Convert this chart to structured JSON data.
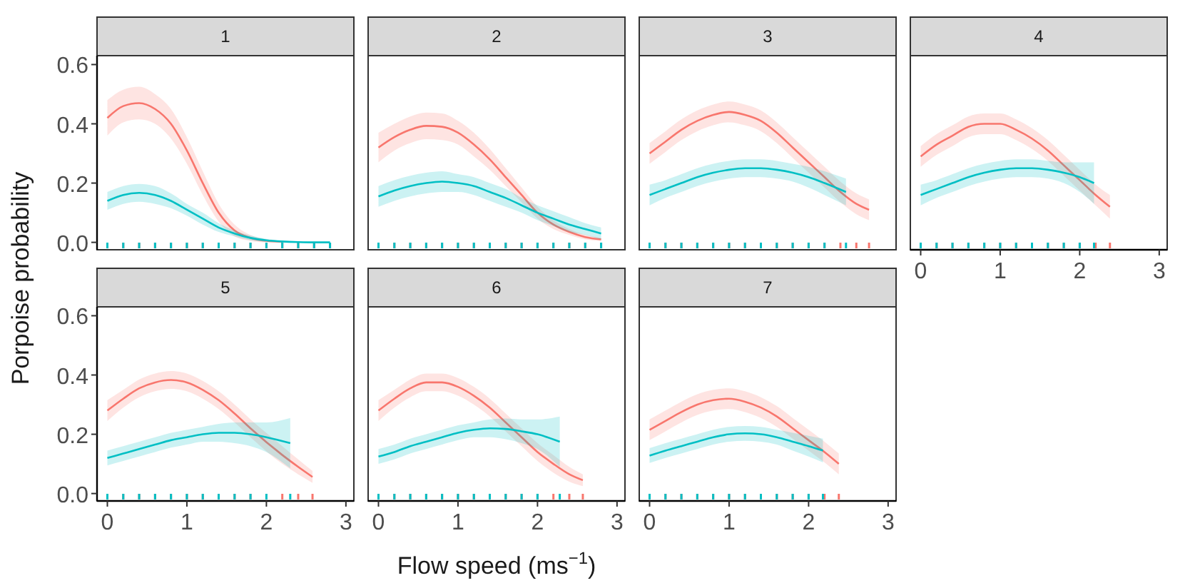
{
  "chart_data": [
    {
      "type": "line",
      "title": "1",
      "ylabel": "Porpoise probability",
      "xlim": [
        -0.13,
        3.1
      ],
      "ylim": [
        -0.025,
        0.63
      ],
      "yticks": [
        {
          "value": 0,
          "label": "0.0"
        },
        {
          "value": 0.2,
          "label": "0.2"
        },
        {
          "value": 0.4,
          "label": "0.4"
        },
        {
          "value": 0.6,
          "label": "0.6"
        }
      ],
      "tick_labels": "y",
      "series": [
        {
          "color": "#f8766d",
          "x": [
            0,
            0.2,
            0.4,
            0.6,
            0.8,
            1,
            1.2,
            1.4,
            1.6,
            1.8,
            2,
            2.2,
            2.4,
            2.6,
            2.8
          ],
          "values": [
            0.42,
            0.46,
            0.47,
            0.45,
            0.4,
            0.31,
            0.2,
            0.1,
            0.04,
            0.015,
            0.005,
            0.002,
            null,
            null,
            null
          ],
          "lower": [
            0.36,
            0.405,
            0.415,
            0.4,
            0.35,
            0.265,
            0.16,
            0.07,
            0.02,
            0.005,
            0,
            0,
            0,
            0,
            0
          ],
          "upper": [
            0.48,
            0.515,
            0.525,
            0.5,
            0.45,
            0.355,
            0.24,
            0.13,
            0.06,
            0.025,
            0.01,
            0.005,
            0.003,
            0.001,
            0.001
          ]
        },
        {
          "color": "#00bfc4",
          "x": [
            0,
            0.2,
            0.4,
            0.6,
            0.8,
            1,
            1.2,
            1.4,
            1.6,
            1.8,
            2,
            2.2,
            2.4,
            2.6,
            2.8
          ],
          "values": [
            0.14,
            0.16,
            0.167,
            0.16,
            0.14,
            0.11,
            0.08,
            0.05,
            0.03,
            0.015,
            0.007,
            0.003,
            0.001,
            0,
            0
          ],
          "lower": [
            0.11,
            0.13,
            0.137,
            0.13,
            0.115,
            0.09,
            0.06,
            0.035,
            0.02,
            0.007,
            0.002,
            0,
            0,
            0,
            0
          ],
          "upper": [
            0.17,
            0.19,
            0.197,
            0.19,
            0.165,
            0.13,
            0.1,
            0.065,
            0.04,
            0.023,
            0.012,
            0.006,
            0.003,
            0.001,
            0.001
          ]
        }
      ]
    },
    {
      "type": "line",
      "title": "2",
      "xlim": [
        -0.13,
        3.1
      ],
      "ylim": [
        -0.025,
        0.63
      ],
      "tick_labels": false,
      "series": [
        {
          "color": "#f8766d",
          "x": [
            0,
            0.2,
            0.4,
            0.6,
            0.8,
            1,
            1.2,
            1.4,
            1.6,
            1.8,
            2,
            2.2,
            2.4,
            2.6,
            2.8
          ],
          "values": [
            0.32,
            0.355,
            0.38,
            0.393,
            0.39,
            0.37,
            0.33,
            0.28,
            0.22,
            0.16,
            0.1,
            0.06,
            0.035,
            0.018,
            0.01
          ],
          "lower": [
            0.27,
            0.31,
            0.335,
            0.348,
            0.345,
            0.33,
            0.29,
            0.245,
            0.19,
            0.135,
            0.08,
            0.045,
            0.025,
            0.01,
            0.005
          ],
          "upper": [
            0.37,
            0.4,
            0.425,
            0.438,
            0.435,
            0.41,
            0.37,
            0.315,
            0.25,
            0.185,
            0.12,
            0.075,
            0.045,
            0.026,
            0.015
          ]
        },
        {
          "color": "#00bfc4",
          "x": [
            0,
            0.2,
            0.4,
            0.6,
            0.8,
            1,
            1.2,
            1.4,
            1.6,
            1.8,
            2,
            2.2,
            2.4,
            2.6,
            2.8
          ],
          "values": [
            0.155,
            0.175,
            0.19,
            0.2,
            0.205,
            0.2,
            0.19,
            0.17,
            0.15,
            0.125,
            0.1,
            0.08,
            0.06,
            0.045,
            0.03
          ],
          "lower": [
            0.12,
            0.14,
            0.155,
            0.165,
            0.17,
            0.17,
            0.16,
            0.14,
            0.12,
            0.1,
            0.075,
            0.055,
            0.035,
            0.025,
            0.01
          ],
          "upper": [
            0.19,
            0.21,
            0.225,
            0.235,
            0.24,
            0.23,
            0.22,
            0.2,
            0.18,
            0.15,
            0.125,
            0.105,
            0.085,
            0.065,
            0.05
          ]
        }
      ]
    },
    {
      "type": "line",
      "title": "3",
      "xlim": [
        -0.13,
        3.1
      ],
      "ylim": [
        -0.025,
        0.63
      ],
      "tick_labels": false,
      "series": [
        {
          "color": "#f8766d",
          "x": [
            0,
            0.2,
            0.4,
            0.6,
            0.8,
            1,
            1.2,
            1.4,
            1.6,
            1.8,
            2,
            2.2,
            2.4,
            2.6,
            2.76
          ],
          "values": [
            0.3,
            0.34,
            0.38,
            0.41,
            0.43,
            0.44,
            0.43,
            0.41,
            0.37,
            0.32,
            0.27,
            0.22,
            0.17,
            0.13,
            0.11
          ],
          "lower": [
            0.265,
            0.305,
            0.345,
            0.375,
            0.395,
            0.405,
            0.395,
            0.375,
            0.335,
            0.285,
            0.235,
            0.185,
            0.135,
            0.095,
            0.075
          ],
          "upper": [
            0.335,
            0.375,
            0.415,
            0.445,
            0.465,
            0.475,
            0.465,
            0.445,
            0.405,
            0.355,
            0.305,
            0.255,
            0.205,
            0.165,
            0.145
          ]
        },
        {
          "color": "#00bfc4",
          "x": [
            0,
            0.2,
            0.4,
            0.6,
            0.8,
            1,
            1.2,
            1.4,
            1.6,
            1.8,
            2,
            2.2,
            2.47
          ],
          "values": [
            0.16,
            0.18,
            0.2,
            0.22,
            0.235,
            0.245,
            0.25,
            0.25,
            0.245,
            0.235,
            0.22,
            0.2,
            0.17
          ],
          "lower": [
            0.125,
            0.15,
            0.17,
            0.19,
            0.205,
            0.215,
            0.22,
            0.22,
            0.215,
            0.205,
            0.185,
            0.16,
            0.125
          ],
          "upper": [
            0.195,
            0.21,
            0.23,
            0.25,
            0.265,
            0.275,
            0.28,
            0.28,
            0.275,
            0.265,
            0.255,
            0.24,
            0.215
          ]
        }
      ]
    },
    {
      "type": "line",
      "title": "4",
      "xlim": [
        -0.13,
        3.1
      ],
      "ylim": [
        -0.025,
        0.63
      ],
      "xticks": [
        0,
        1,
        2,
        3
      ],
      "tick_labels": "x",
      "series": [
        {
          "color": "#f8766d",
          "x": [
            0,
            0.2,
            0.4,
            0.6,
            0.8,
            1,
            1.2,
            1.4,
            1.6,
            1.8,
            2,
            2.2,
            2.38
          ],
          "values": [
            0.29,
            0.33,
            0.36,
            0.39,
            0.4,
            0.4,
            0.38,
            0.35,
            0.31,
            0.26,
            0.21,
            0.16,
            0.12
          ],
          "lower": [
            0.255,
            0.295,
            0.325,
            0.355,
            0.365,
            0.365,
            0.345,
            0.315,
            0.275,
            0.225,
            0.175,
            0.125,
            0.08
          ],
          "upper": [
            0.325,
            0.365,
            0.395,
            0.425,
            0.435,
            0.435,
            0.415,
            0.385,
            0.345,
            0.295,
            0.245,
            0.195,
            0.16
          ]
        },
        {
          "color": "#00bfc4",
          "x": [
            0,
            0.2,
            0.4,
            0.6,
            0.8,
            1,
            1.2,
            1.4,
            1.6,
            1.8,
            2,
            2.18
          ],
          "values": [
            0.16,
            0.18,
            0.2,
            0.22,
            0.235,
            0.245,
            0.25,
            0.25,
            0.245,
            0.235,
            0.22,
            0.2
          ],
          "lower": [
            0.125,
            0.15,
            0.17,
            0.19,
            0.205,
            0.215,
            0.22,
            0.22,
            0.215,
            0.2,
            0.17,
            0.13
          ],
          "upper": [
            0.195,
            0.21,
            0.23,
            0.25,
            0.265,
            0.275,
            0.28,
            0.28,
            0.275,
            0.27,
            0.27,
            0.27
          ]
        }
      ]
    },
    {
      "type": "line",
      "title": "5",
      "xlim": [
        -0.13,
        3.1
      ],
      "ylim": [
        -0.025,
        0.63
      ],
      "xticks": [
        0,
        1,
        2,
        3
      ],
      "yticks": [
        {
          "value": 0,
          "label": "0.0"
        },
        {
          "value": 0.2,
          "label": "0.2"
        },
        {
          "value": 0.4,
          "label": "0.4"
        },
        {
          "value": 0.6,
          "label": "0.6"
        }
      ],
      "series": [
        {
          "color": "#f8766d",
          "x": [
            0,
            0.2,
            0.4,
            0.6,
            0.8,
            1,
            1.2,
            1.4,
            1.6,
            1.8,
            2.2,
            2.4,
            2.58
          ],
          "values": [
            0.28,
            0.32,
            0.355,
            0.375,
            0.383,
            0.375,
            0.35,
            0.315,
            0.27,
            0.22,
            0.13,
            0.09,
            0.056
          ],
          "lower": [
            0.245,
            0.29,
            0.325,
            0.345,
            0.353,
            0.345,
            0.32,
            0.285,
            0.24,
            0.19,
            0.1,
            0.065,
            0.036
          ],
          "upper": [
            0.315,
            0.35,
            0.385,
            0.405,
            0.413,
            0.405,
            0.38,
            0.345,
            0.3,
            0.25,
            0.16,
            0.115,
            0.076
          ]
        },
        {
          "color": "#00bfc4",
          "x": [
            0,
            0.2,
            0.4,
            0.6,
            0.8,
            1,
            1.2,
            1.4,
            1.6,
            1.8,
            2,
            2.3
          ],
          "values": [
            0.12,
            0.135,
            0.15,
            0.165,
            0.18,
            0.19,
            0.2,
            0.205,
            0.205,
            0.2,
            0.19,
            0.17
          ],
          "lower": [
            0.095,
            0.11,
            0.125,
            0.14,
            0.155,
            0.165,
            0.175,
            0.175,
            0.17,
            0.16,
            0.14,
            0.085
          ],
          "upper": [
            0.145,
            0.16,
            0.175,
            0.19,
            0.205,
            0.215,
            0.225,
            0.235,
            0.24,
            0.24,
            0.24,
            0.255
          ]
        }
      ]
    },
    {
      "type": "line",
      "title": "6",
      "xlabel": "Flow speed (ms$^{−1}$)",
      "xlim": [
        -0.13,
        3.1
      ],
      "ylim": [
        -0.025,
        0.63
      ],
      "xticks": [
        0,
        1,
        2,
        3
      ],
      "tick_labels": "x",
      "series": [
        {
          "color": "#f8766d",
          "x": [
            0,
            0.2,
            0.4,
            0.6,
            0.8,
            1,
            1.2,
            1.4,
            1.6,
            1.8,
            2,
            2.2,
            2.4,
            2.57
          ],
          "values": [
            0.28,
            0.32,
            0.355,
            0.375,
            0.375,
            0.36,
            0.33,
            0.29,
            0.24,
            0.19,
            0.14,
            0.1,
            0.065,
            0.045
          ],
          "lower": [
            0.245,
            0.29,
            0.325,
            0.345,
            0.345,
            0.33,
            0.3,
            0.26,
            0.21,
            0.16,
            0.11,
            0.07,
            0.04,
            0.025
          ],
          "upper": [
            0.315,
            0.35,
            0.385,
            0.405,
            0.405,
            0.39,
            0.36,
            0.32,
            0.27,
            0.22,
            0.17,
            0.13,
            0.09,
            0.065
          ]
        },
        {
          "color": "#00bfc4",
          "x": [
            0,
            0.2,
            0.4,
            0.6,
            0.8,
            1,
            1.2,
            1.4,
            1.6,
            1.8,
            2,
            2.28
          ],
          "values": [
            0.125,
            0.14,
            0.16,
            0.175,
            0.19,
            0.205,
            0.215,
            0.22,
            0.218,
            0.21,
            0.2,
            0.175
          ],
          "lower": [
            0.1,
            0.115,
            0.135,
            0.15,
            0.165,
            0.18,
            0.19,
            0.19,
            0.183,
            0.17,
            0.15,
            0.09
          ],
          "upper": [
            0.15,
            0.165,
            0.185,
            0.2,
            0.215,
            0.23,
            0.24,
            0.25,
            0.253,
            0.25,
            0.25,
            0.26
          ]
        }
      ]
    },
    {
      "type": "line",
      "title": "7",
      "xlim": [
        -0.13,
        3.1
      ],
      "ylim": [
        -0.025,
        0.63
      ],
      "xticks": [
        0,
        1,
        2,
        3
      ],
      "tick_labels": "x",
      "series": [
        {
          "color": "#f8766d",
          "x": [
            0,
            0.2,
            0.4,
            0.6,
            0.8,
            1,
            1.2,
            1.4,
            1.6,
            1.8,
            2,
            2.2,
            2.38
          ],
          "values": [
            0.215,
            0.245,
            0.275,
            0.3,
            0.315,
            0.32,
            0.31,
            0.29,
            0.26,
            0.22,
            0.18,
            0.14,
            0.1
          ],
          "lower": [
            0.18,
            0.21,
            0.24,
            0.265,
            0.28,
            0.285,
            0.275,
            0.255,
            0.225,
            0.185,
            0.145,
            0.105,
            0.065
          ],
          "upper": [
            0.25,
            0.28,
            0.31,
            0.335,
            0.35,
            0.355,
            0.345,
            0.325,
            0.295,
            0.255,
            0.215,
            0.175,
            0.135
          ]
        },
        {
          "color": "#00bfc4",
          "x": [
            0,
            0.2,
            0.4,
            0.6,
            0.8,
            1,
            1.2,
            1.4,
            1.6,
            1.8,
            2,
            2.18
          ],
          "values": [
            0.128,
            0.145,
            0.16,
            0.175,
            0.19,
            0.2,
            0.203,
            0.2,
            0.19,
            0.175,
            0.16,
            0.145
          ],
          "lower": [
            0.103,
            0.12,
            0.135,
            0.15,
            0.165,
            0.175,
            0.178,
            0.175,
            0.165,
            0.145,
            0.125,
            0.105
          ],
          "upper": [
            0.153,
            0.17,
            0.185,
            0.2,
            0.215,
            0.225,
            0.228,
            0.225,
            0.215,
            0.205,
            0.195,
            0.185
          ]
        }
      ]
    }
  ]
}
